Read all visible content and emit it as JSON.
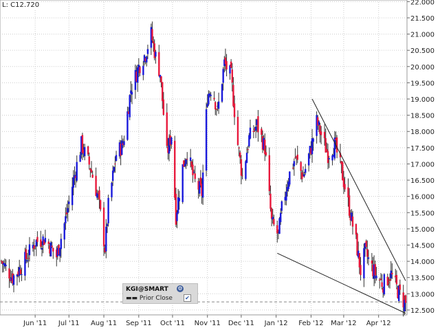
{
  "header": {
    "last_price": "L: C12.720"
  },
  "legend": {
    "symbol": "KGI@SMART",
    "prior_close_label": "Prior Close",
    "prior_close_checked": "✔"
  },
  "colors": {
    "up": "#1a1adc",
    "down": "#e8193c",
    "grid": "#cccccc",
    "trend": "#222222",
    "prior": "#888888"
  },
  "chart_data": {
    "type": "candlestick",
    "x": {
      "start": "2011-05-02",
      "end": "2012-04-25"
    },
    "x_tick_labels": [
      "Jun '11",
      "Jul '11",
      "Aug '11",
      "Sep '11",
      "Oct '11",
      "Nov '11",
      "Dec '11",
      "Jan '12",
      "Feb '12",
      "Mar '12",
      "Apr '12"
    ],
    "y_tick_labels": [
      "12.500",
      "13.000",
      "13.500",
      "14.000",
      "14.500",
      "15.000",
      "15.500",
      "16.000",
      "16.500",
      "17.000",
      "17.500",
      "18.000",
      "18.500",
      "19.000",
      "19.500",
      "20.000",
      "20.500",
      "21.000",
      "21.500",
      "22.000"
    ],
    "ylim": [
      12.35,
      22.05
    ],
    "axis_side": "right",
    "grid": true,
    "prior_close": 12.75,
    "last": 12.72,
    "close_path": [
      [
        "2011-05-02",
        14.0
      ],
      [
        "2011-05-12",
        13.5
      ],
      [
        "2011-05-20",
        13.85
      ],
      [
        "2011-06-01",
        14.6
      ],
      [
        "2011-06-10",
        14.7
      ],
      [
        "2011-06-20",
        14.15
      ],
      [
        "2011-06-28",
        15.3
      ],
      [
        "2011-07-05",
        16.5
      ],
      [
        "2011-07-12",
        17.6
      ],
      [
        "2011-07-20",
        16.9
      ],
      [
        "2011-07-27",
        15.95
      ],
      [
        "2011-08-02",
        14.4
      ],
      [
        "2011-08-05",
        15.7
      ],
      [
        "2011-08-12",
        17.3
      ],
      [
        "2011-08-18",
        17.6
      ],
      [
        "2011-08-25",
        19.3
      ],
      [
        "2011-09-01",
        20.0
      ],
      [
        "2011-09-07",
        20.4
      ],
      [
        "2011-09-12",
        21.0
      ],
      [
        "2011-09-16",
        20.3
      ],
      [
        "2011-09-20",
        19.8
      ],
      [
        "2011-09-26",
        17.3
      ],
      [
        "2011-09-30",
        17.9
      ],
      [
        "2011-10-04",
        15.4
      ],
      [
        "2011-10-10",
        16.9
      ],
      [
        "2011-10-14",
        17.4
      ],
      [
        "2011-10-20",
        16.5
      ],
      [
        "2011-10-27",
        16.1
      ],
      [
        "2011-11-01",
        19.1
      ],
      [
        "2011-11-05",
        19.4
      ],
      [
        "2011-11-10",
        18.6
      ],
      [
        "2011-11-16",
        20.1
      ],
      [
        "2011-11-22",
        19.7
      ],
      [
        "2011-11-28",
        17.6
      ],
      [
        "2011-12-02",
        16.6
      ],
      [
        "2011-12-08",
        17.8
      ],
      [
        "2011-12-15",
        18.2
      ],
      [
        "2011-12-22",
        17.5
      ],
      [
        "2011-12-28",
        15.2
      ],
      [
        "2012-01-03",
        14.8
      ],
      [
        "2012-01-06",
        15.6
      ],
      [
        "2012-01-12",
        16.6
      ],
      [
        "2012-01-18",
        17.2
      ],
      [
        "2012-01-25",
        16.6
      ],
      [
        "2012-02-01",
        17.5
      ],
      [
        "2012-02-06",
        18.3
      ],
      [
        "2012-02-10",
        17.9
      ],
      [
        "2012-02-16",
        17.3
      ],
      [
        "2012-02-22",
        17.6
      ],
      [
        "2012-02-28",
        16.8
      ],
      [
        "2012-03-05",
        15.8
      ],
      [
        "2012-03-12",
        14.6
      ],
      [
        "2012-03-16",
        13.7
      ],
      [
        "2012-03-20",
        14.3
      ],
      [
        "2012-03-26",
        13.8
      ],
      [
        "2012-03-31",
        13.5
      ],
      [
        "2012-04-05",
        13.3
      ],
      [
        "2012-04-12",
        13.6
      ],
      [
        "2012-04-18",
        13.1
      ],
      [
        "2012-04-24",
        12.72
      ]
    ],
    "trendlines": [
      {
        "name": "upper",
        "from": [
          "2012-02-02",
          19.0
        ],
        "to": [
          "2012-04-25",
          13.4
        ]
      },
      {
        "name": "lower",
        "from": [
          "2012-01-02",
          14.25
        ],
        "to": [
          "2012-04-25",
          12.4
        ]
      }
    ]
  }
}
